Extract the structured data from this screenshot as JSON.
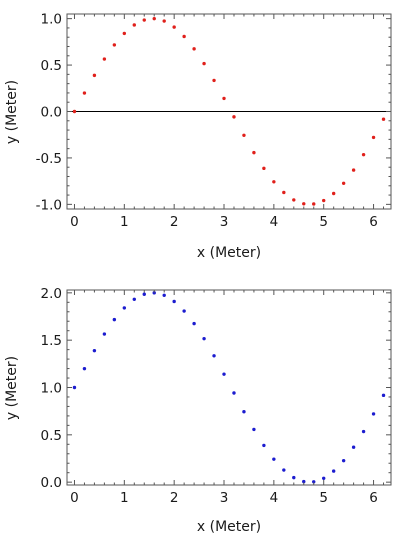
{
  "chart_data": [
    {
      "type": "scatter",
      "title": "",
      "xlabel": "x (Meter)",
      "ylabel": "y (Meter)",
      "xlim": [
        -0.15,
        6.35
      ],
      "ylim": [
        -1.05,
        1.05
      ],
      "x_ticks": [
        0,
        1,
        2,
        3,
        4,
        5,
        6
      ],
      "x_tick_labels": [
        "0",
        "1",
        "2",
        "3",
        "4",
        "5",
        "6"
      ],
      "y_ticks": [
        -1.0,
        -0.5,
        0.0,
        0.5,
        1.0
      ],
      "y_tick_labels": [
        "-1.0",
        "-0.5",
        "0.0",
        "0.5",
        "1.0"
      ],
      "zero_line": true,
      "grid": false,
      "legend": "none",
      "series": [
        {
          "color": "#e0201b",
          "points": [
            [
              0.0,
              0.0
            ],
            [
              0.2,
              0.199
            ],
            [
              0.4,
              0.389
            ],
            [
              0.6,
              0.565
            ],
            [
              0.8,
              0.717
            ],
            [
              1.0,
              0.841
            ],
            [
              1.2,
              0.932
            ],
            [
              1.4,
              0.985
            ],
            [
              1.6,
              1.0
            ],
            [
              1.8,
              0.974
            ],
            [
              2.0,
              0.909
            ],
            [
              2.2,
              0.808
            ],
            [
              2.4,
              0.675
            ],
            [
              2.6,
              0.516
            ],
            [
              2.8,
              0.335
            ],
            [
              3.0,
              0.141
            ],
            [
              3.2,
              -0.058
            ],
            [
              3.4,
              -0.256
            ],
            [
              3.6,
              -0.443
            ],
            [
              3.8,
              -0.612
            ],
            [
              4.0,
              -0.757
            ],
            [
              4.2,
              -0.872
            ],
            [
              4.4,
              -0.952
            ],
            [
              4.6,
              -0.994
            ],
            [
              4.8,
              -0.996
            ],
            [
              5.0,
              -0.959
            ],
            [
              5.2,
              -0.883
            ],
            [
              5.4,
              -0.773
            ],
            [
              5.6,
              -0.631
            ],
            [
              5.8,
              -0.465
            ],
            [
              6.0,
              -0.279
            ],
            [
              6.2,
              -0.083
            ]
          ]
        }
      ]
    },
    {
      "type": "scatter",
      "title": "",
      "xlabel": "x (Meter)",
      "ylabel": "y (Meter)",
      "xlim": [
        -0.15,
        6.35
      ],
      "ylim": [
        -0.03,
        2.03
      ],
      "x_ticks": [
        0,
        1,
        2,
        3,
        4,
        5,
        6
      ],
      "x_tick_labels": [
        "0",
        "1",
        "2",
        "3",
        "4",
        "5",
        "6"
      ],
      "y_ticks": [
        0.0,
        0.5,
        1.0,
        1.5,
        2.0
      ],
      "y_tick_labels": [
        "0.0",
        "0.5",
        "1.0",
        "1.5",
        "2.0"
      ],
      "zero_line": false,
      "grid": false,
      "legend": "none",
      "series": [
        {
          "color": "#1c1ccf",
          "points": [
            [
              0.0,
              1.0
            ],
            [
              0.2,
              1.199
            ],
            [
              0.4,
              1.389
            ],
            [
              0.6,
              1.565
            ],
            [
              0.8,
              1.717
            ],
            [
              1.0,
              1.841
            ],
            [
              1.2,
              1.932
            ],
            [
              1.4,
              1.985
            ],
            [
              1.6,
              2.0
            ],
            [
              1.8,
              1.974
            ],
            [
              2.0,
              1.909
            ],
            [
              2.2,
              1.808
            ],
            [
              2.4,
              1.675
            ],
            [
              2.6,
              1.516
            ],
            [
              2.8,
              1.335
            ],
            [
              3.0,
              1.141
            ],
            [
              3.2,
              0.942
            ],
            [
              3.4,
              0.744
            ],
            [
              3.6,
              0.557
            ],
            [
              3.8,
              0.388
            ],
            [
              4.0,
              0.243
            ],
            [
              4.2,
              0.128
            ],
            [
              4.4,
              0.048
            ],
            [
              4.6,
              0.006
            ],
            [
              4.8,
              0.004
            ],
            [
              5.0,
              0.041
            ],
            [
              5.2,
              0.117
            ],
            [
              5.4,
              0.227
            ],
            [
              5.6,
              0.369
            ],
            [
              5.8,
              0.535
            ],
            [
              6.0,
              0.721
            ],
            [
              6.2,
              0.917
            ]
          ]
        }
      ]
    }
  ]
}
